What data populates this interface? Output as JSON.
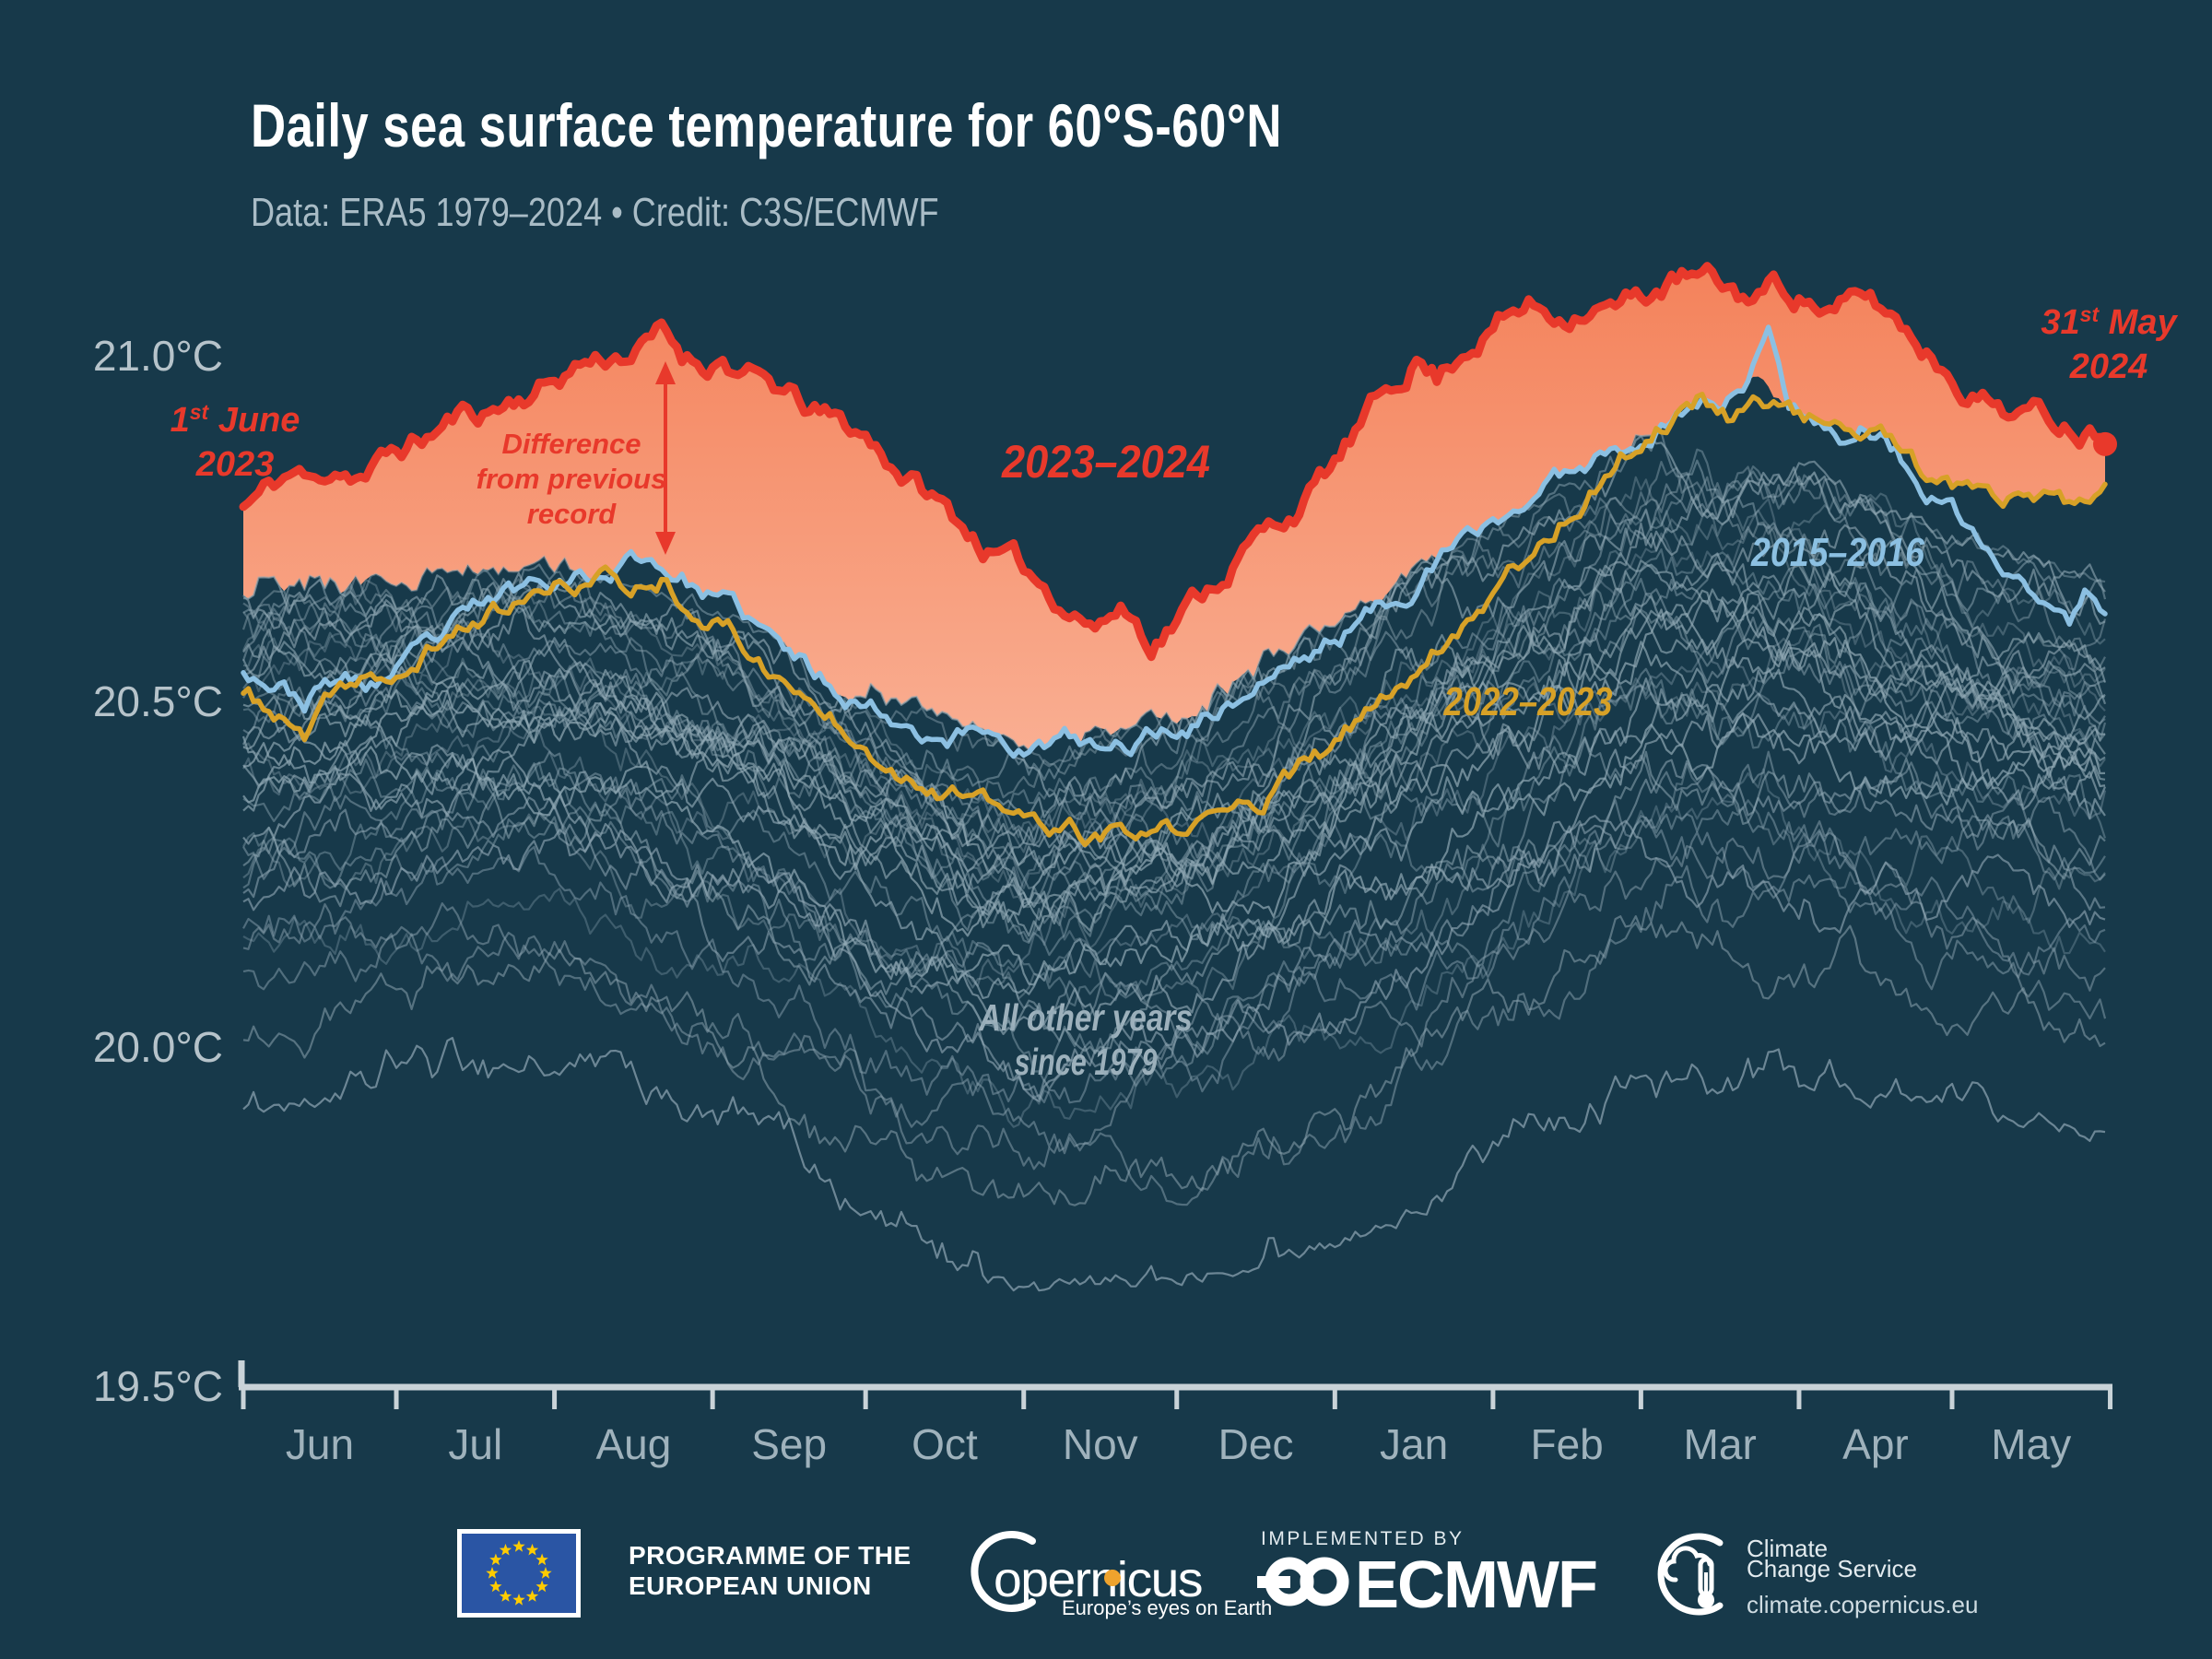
{
  "header": {
    "title": "Daily sea surface temperature for 60°S-60°N",
    "subtitle": "Data: ERA5 1979–2024 • Credit: C3S/ECMWF"
  },
  "theme": {
    "background": "#17394a",
    "title_color": "#ffffff",
    "subtitle_color": "#a9bcc6",
    "axis_color": "#c9d3d8",
    "month_label_color": "#9fb2bc",
    "y_label_color": "#b6c3ca",
    "record_red": "#e8392b",
    "fill_top": "#f4835c",
    "fill_bottom": "#fdc9b3",
    "blue_2015": "#8cc0e2",
    "gold_2022": "#d7a127",
    "other_years_gray": "#92aab6",
    "other_years_label_color": "#9db1bc"
  },
  "chart_data": {
    "type": "line",
    "title": "Daily sea surface temperature for 60°S-60°N",
    "subtitle": "Data: ERA5 1979–2024 • Credit: C3S/ECMWF",
    "units": "°C",
    "x_axis": {
      "months": [
        "Jun",
        "Jul",
        "Aug",
        "Sep",
        "Oct",
        "Nov",
        "Dec",
        "Jan",
        "Feb",
        "Mar",
        "Apr",
        "May"
      ],
      "month_days": [
        30,
        31,
        31,
        30,
        31,
        30,
        31,
        31,
        29,
        31,
        30,
        31
      ],
      "span": "1 June 2023 – 31 May 2024"
    },
    "y_axis": {
      "ticks": [
        {
          "label": "21.0°C",
          "value": 21.0
        },
        {
          "label": "20.5°C",
          "value": 20.5
        },
        {
          "label": "20.0°C",
          "value": 20.0
        },
        {
          "label": "19.5°C",
          "value": 19.5
        }
      ],
      "ylim": [
        19.45,
        21.15
      ],
      "grid": false
    },
    "series": [
      {
        "name": "2023–2024",
        "color": "#e8392b",
        "role": "record year, shaded down to previous daily record",
        "keypoints_day_tempC": [
          [
            0,
            20.78
          ],
          [
            6,
            20.81
          ],
          [
            10,
            20.83
          ],
          [
            14,
            20.81
          ],
          [
            18,
            20.84
          ],
          [
            24,
            20.83
          ],
          [
            30,
            20.86
          ],
          [
            36,
            20.88
          ],
          [
            42,
            20.91
          ],
          [
            48,
            20.92
          ],
          [
            54,
            20.94
          ],
          [
            60,
            20.96
          ],
          [
            66,
            20.99
          ],
          [
            72,
            21.0
          ],
          [
            78,
            21.01
          ],
          [
            82,
            21.03
          ],
          [
            86,
            21.0
          ],
          [
            90,
            20.99
          ],
          [
            94,
            21.0
          ],
          [
            98,
            20.97
          ],
          [
            104,
            20.95
          ],
          [
            110,
            20.92
          ],
          [
            116,
            20.9
          ],
          [
            122,
            20.88
          ],
          [
            128,
            20.84
          ],
          [
            134,
            20.8
          ],
          [
            140,
            20.76
          ],
          [
            146,
            20.72
          ],
          [
            152,
            20.69
          ],
          [
            158,
            20.66
          ],
          [
            164,
            20.63
          ],
          [
            168,
            20.61
          ],
          [
            172,
            20.64
          ],
          [
            178,
            20.59
          ],
          [
            184,
            20.63
          ],
          [
            190,
            20.67
          ],
          [
            196,
            20.72
          ],
          [
            202,
            20.75
          ],
          [
            208,
            20.79
          ],
          [
            214,
            20.84
          ],
          [
            220,
            20.9
          ],
          [
            226,
            20.96
          ],
          [
            230,
            21.0
          ],
          [
            234,
            20.97
          ],
          [
            240,
            21.02
          ],
          [
            246,
            21.05
          ],
          [
            252,
            21.07
          ],
          [
            258,
            21.06
          ],
          [
            264,
            21.08
          ],
          [
            270,
            21.07
          ],
          [
            276,
            21.09
          ],
          [
            282,
            21.11
          ],
          [
            288,
            21.1
          ],
          [
            294,
            21.08
          ],
          [
            300,
            21.1
          ],
          [
            306,
            21.09
          ],
          [
            312,
            21.06
          ],
          [
            318,
            21.08
          ],
          [
            324,
            21.05
          ],
          [
            330,
            21.01
          ],
          [
            336,
            20.97
          ],
          [
            342,
            20.94
          ],
          [
            348,
            20.92
          ],
          [
            354,
            20.91
          ],
          [
            360,
            20.9
          ],
          [
            365,
            20.9
          ]
        ],
        "start": {
          "date": "1 June 2023",
          "value": 20.78
        },
        "end": {
          "date": "31 May 2024",
          "value": 20.9,
          "marker": "dot"
        }
      },
      {
        "name": "2015–2016",
        "color": "#8cc0e2",
        "keypoints_day_tempC": [
          [
            0,
            20.55
          ],
          [
            6,
            20.53
          ],
          [
            12,
            20.5
          ],
          [
            18,
            20.53
          ],
          [
            24,
            20.52
          ],
          [
            30,
            20.54
          ],
          [
            38,
            20.58
          ],
          [
            46,
            20.63
          ],
          [
            54,
            20.66
          ],
          [
            62,
            20.69
          ],
          [
            70,
            20.68
          ],
          [
            78,
            20.71
          ],
          [
            84,
            20.69
          ],
          [
            90,
            20.66
          ],
          [
            98,
            20.62
          ],
          [
            106,
            20.57
          ],
          [
            114,
            20.53
          ],
          [
            122,
            20.5
          ],
          [
            130,
            20.47
          ],
          [
            138,
            20.45
          ],
          [
            146,
            20.46
          ],
          [
            154,
            20.43
          ],
          [
            162,
            20.44
          ],
          [
            170,
            20.42
          ],
          [
            178,
            20.45
          ],
          [
            186,
            20.47
          ],
          [
            194,
            20.5
          ],
          [
            202,
            20.54
          ],
          [
            210,
            20.57
          ],
          [
            218,
            20.61
          ],
          [
            226,
            20.65
          ],
          [
            234,
            20.7
          ],
          [
            242,
            20.74
          ],
          [
            250,
            20.78
          ],
          [
            258,
            20.82
          ],
          [
            266,
            20.86
          ],
          [
            272,
            20.88
          ],
          [
            278,
            20.9
          ],
          [
            284,
            20.93
          ],
          [
            290,
            20.94
          ],
          [
            296,
            20.96
          ],
          [
            302,
            20.94
          ],
          [
            308,
            20.92
          ],
          [
            314,
            20.88
          ],
          [
            318,
            20.9
          ],
          [
            324,
            20.86
          ],
          [
            330,
            20.8
          ],
          [
            336,
            20.76
          ],
          [
            342,
            20.71
          ],
          [
            348,
            20.67
          ],
          [
            354,
            20.64
          ],
          [
            358,
            20.61
          ],
          [
            361,
            20.65
          ],
          [
            365,
            20.62
          ]
        ],
        "spike": {
          "day": 299,
          "tempC": 21.04
        }
      },
      {
        "name": "2022–2023",
        "color": "#d7a127",
        "keypoints_day_tempC": [
          [
            0,
            20.51
          ],
          [
            6,
            20.48
          ],
          [
            12,
            20.44
          ],
          [
            18,
            20.5
          ],
          [
            24,
            20.54
          ],
          [
            30,
            20.52
          ],
          [
            38,
            20.58
          ],
          [
            46,
            20.62
          ],
          [
            54,
            20.64
          ],
          [
            62,
            20.66
          ],
          [
            70,
            20.68
          ],
          [
            76,
            20.66
          ],
          [
            82,
            20.68
          ],
          [
            88,
            20.64
          ],
          [
            96,
            20.6
          ],
          [
            104,
            20.54
          ],
          [
            112,
            20.49
          ],
          [
            120,
            20.46
          ],
          [
            128,
            20.41
          ],
          [
            136,
            20.38
          ],
          [
            144,
            20.35
          ],
          [
            152,
            20.33
          ],
          [
            160,
            20.31
          ],
          [
            168,
            20.3
          ],
          [
            176,
            20.3
          ],
          [
            184,
            20.31
          ],
          [
            192,
            20.33
          ],
          [
            200,
            20.36
          ],
          [
            208,
            20.4
          ],
          [
            214,
            20.43
          ],
          [
            222,
            20.49
          ],
          [
            230,
            20.55
          ],
          [
            238,
            20.61
          ],
          [
            246,
            20.67
          ],
          [
            254,
            20.73
          ],
          [
            262,
            20.79
          ],
          [
            270,
            20.85
          ],
          [
            278,
            20.9
          ],
          [
            286,
            20.94
          ],
          [
            292,
            20.91
          ],
          [
            296,
            20.95
          ],
          [
            302,
            20.92
          ],
          [
            308,
            20.91
          ],
          [
            314,
            20.89
          ],
          [
            320,
            20.88
          ],
          [
            326,
            20.86
          ],
          [
            332,
            20.8
          ],
          [
            338,
            20.79
          ],
          [
            344,
            20.78
          ],
          [
            350,
            20.79
          ],
          [
            356,
            20.78
          ],
          [
            360,
            20.77
          ],
          [
            365,
            20.79
          ]
        ]
      },
      {
        "name": "All other years since 1979",
        "color": "#92aab6",
        "count": 42,
        "note": "seasons 1979–80 to 2022–23 excluding 2015–16 and 2022–23",
        "band_max_monthly": [
          20.66,
          20.67,
          20.68,
          20.62,
          20.5,
          20.42,
          20.46,
          20.6,
          20.73,
          20.86,
          20.82,
          20.72,
          20.66
        ],
        "band_min_monthly": [
          19.88,
          19.92,
          19.95,
          19.85,
          19.72,
          19.63,
          19.65,
          19.7,
          19.78,
          19.9,
          19.92,
          19.9,
          19.86
        ]
      }
    ],
    "shading": {
      "label": "Difference from previous record",
      "description": "area between the 2023–2024 line and the highest value of any previous year on each calendar day",
      "fill_top": "#f4835c",
      "fill_bottom": "#fdc9b3"
    },
    "annotations": [
      {
        "id": "start-date",
        "day": "1",
        "suffix": "st",
        "month": "June",
        "year": "2023",
        "color": "#e8392b"
      },
      {
        "id": "end-date",
        "day": "31",
        "suffix": "st",
        "month": "May",
        "year": "2024",
        "color": "#e8392b"
      },
      {
        "id": "record-diff",
        "lines": [
          "Difference",
          "from previous",
          "record"
        ],
        "arrow": "double-headed vertical",
        "color": "#e8392b"
      },
      {
        "id": "label-2023-2024",
        "text": "2023–2024",
        "color": "#e8392b"
      },
      {
        "id": "label-2015-2016",
        "text": "2015–2016",
        "color": "#8cc0e2"
      },
      {
        "id": "label-2022-2023",
        "text": "2022–2023",
        "color": "#d7a127"
      },
      {
        "id": "label-other-years",
        "lines": [
          "All other years",
          "since 1979"
        ],
        "color": "#9db1bc"
      }
    ],
    "legend_position": "inline annotations"
  },
  "footer": {
    "eu": {
      "line1": "PROGRAMME OF THE",
      "line2": "EUROPEAN UNION",
      "flag_field": "#2a55a4",
      "flag_stars": "#ffcc00"
    },
    "copernicus": {
      "wordmark": "opernicus",
      "tagline": "Europe’s eyes on Earth",
      "dot_color": "#efa32d"
    },
    "ecmwf": {
      "implemented_by": "IMPLEMENTED BY",
      "name": "ECMWF"
    },
    "c3s": {
      "line1": "Climate",
      "line2": "Change Service",
      "url": "climate.copernicus.eu"
    }
  }
}
